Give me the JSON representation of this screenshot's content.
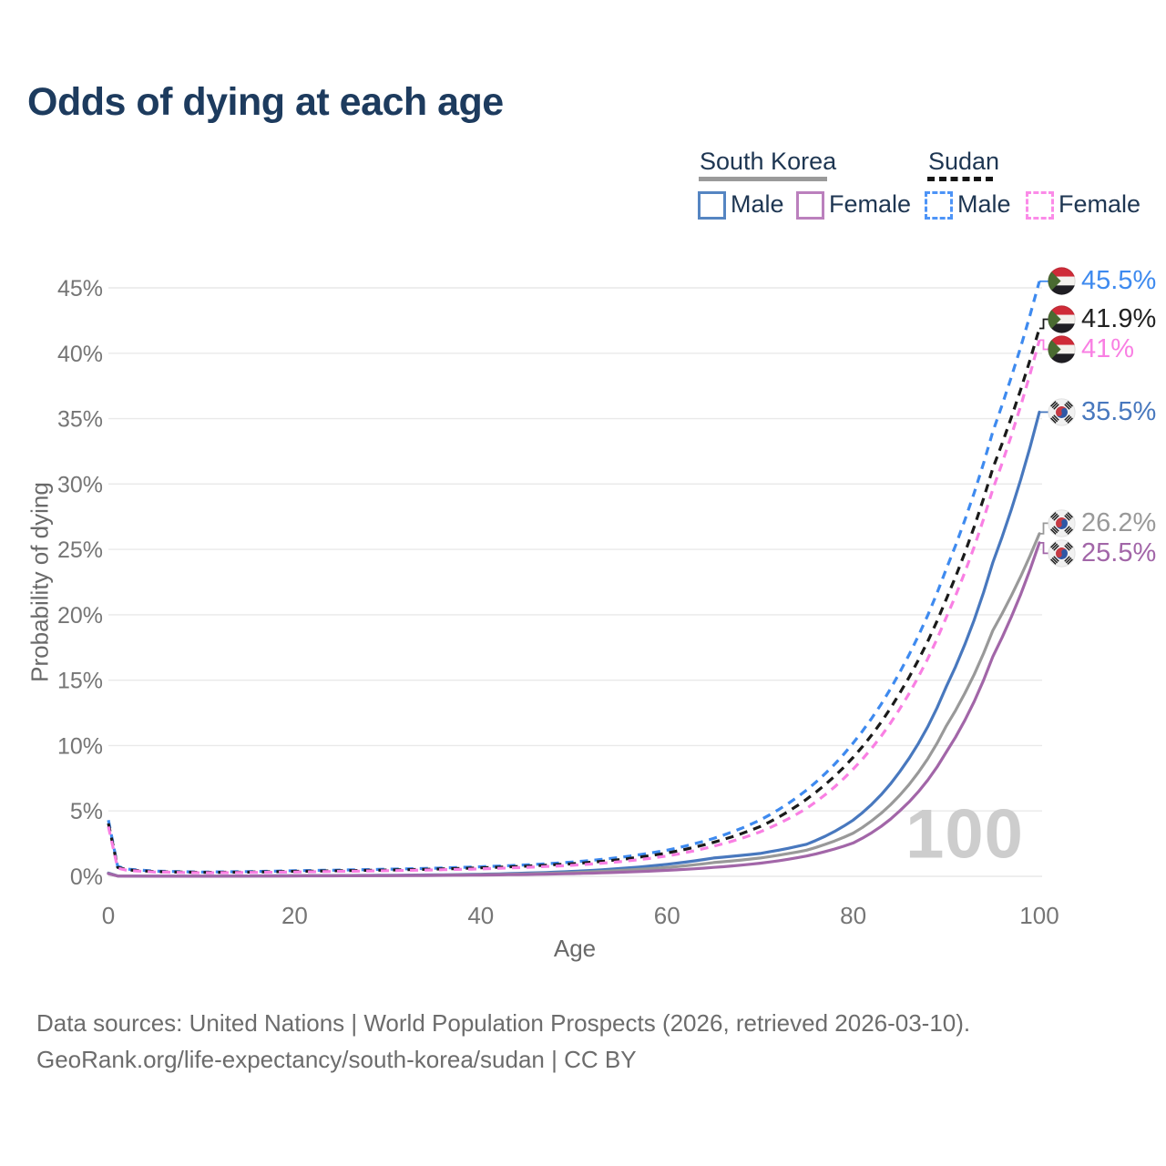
{
  "chart_data": {
    "type": "line",
    "title": "Odds of dying at each age",
    "xlabel": "Age",
    "ylabel": "Probability of dying",
    "xlim": [
      0,
      100
    ],
    "ylim": [
      0,
      45
    ],
    "grid": "horizontal",
    "age_readout": "100",
    "x_ticks": [
      {
        "v": 0,
        "label": "0"
      },
      {
        "v": 20,
        "label": "20"
      },
      {
        "v": 40,
        "label": "40"
      },
      {
        "v": 60,
        "label": "60"
      },
      {
        "v": 80,
        "label": "80"
      },
      {
        "v": 100,
        "label": "100"
      }
    ],
    "y_ticks": [
      {
        "v": 0,
        "label": "0%"
      },
      {
        "v": 5,
        "label": "5%"
      },
      {
        "v": 10,
        "label": "10%"
      },
      {
        "v": 15,
        "label": "15%"
      },
      {
        "v": 20,
        "label": "20%"
      },
      {
        "v": 25,
        "label": "25%"
      },
      {
        "v": 30,
        "label": "30%"
      },
      {
        "v": 35,
        "label": "35%"
      },
      {
        "v": 40,
        "label": "40%"
      },
      {
        "v": 45,
        "label": "45%"
      }
    ],
    "ages": [
      0,
      1,
      2,
      5,
      10,
      15,
      20,
      25,
      30,
      35,
      40,
      45,
      50,
      55,
      60,
      65,
      70,
      75,
      80,
      85,
      90,
      95,
      100
    ],
    "series": [
      {
        "id": "sudan-male",
        "name": "Sudan Male",
        "style": "dashed",
        "color": "#3e8aef",
        "label_color": "#3e8aef",
        "flag": "sudan",
        "end_label": "45.5%",
        "end_value": 45.5,
        "values": [
          4.3,
          0.75,
          0.55,
          0.4,
          0.33,
          0.36,
          0.43,
          0.48,
          0.54,
          0.62,
          0.73,
          0.88,
          1.1,
          1.45,
          2.0,
          2.9,
          4.3,
          6.6,
          10.2,
          15.6,
          23.5,
          34.0,
          45.5
        ]
      },
      {
        "id": "sudan-both",
        "name": "Sudan",
        "style": "dashed",
        "color": "#1a1a1a",
        "label_color": "#222222",
        "flag": "sudan",
        "end_label": "41.9%",
        "end_value": 41.9,
        "values": [
          4.05,
          0.68,
          0.5,
          0.36,
          0.3,
          0.32,
          0.38,
          0.43,
          0.48,
          0.55,
          0.65,
          0.78,
          0.97,
          1.28,
          1.78,
          2.6,
          3.8,
          5.9,
          9.1,
          14.0,
          21.2,
          31.2,
          41.9
        ]
      },
      {
        "id": "sudan-female",
        "name": "Sudan Female",
        "style": "dashed",
        "color": "#f97fe3",
        "label_color": "#f97fe3",
        "flag": "sudan",
        "end_label": "41%",
        "end_value": 41.0,
        "values": [
          3.8,
          0.62,
          0.46,
          0.33,
          0.27,
          0.29,
          0.33,
          0.38,
          0.43,
          0.49,
          0.57,
          0.69,
          0.85,
          1.12,
          1.55,
          2.3,
          3.4,
          5.2,
          8.2,
          12.8,
          19.8,
          29.6,
          41.0
        ]
      },
      {
        "id": "south-korea-male",
        "name": "South Korea Male",
        "style": "solid",
        "color": "#4878be",
        "label_color": "#4878be",
        "flag": "south-korea",
        "end_label": "35.5%",
        "end_value": 35.5,
        "values": [
          0.25,
          0.03,
          0.02,
          0.015,
          0.012,
          0.03,
          0.05,
          0.06,
          0.08,
          0.11,
          0.16,
          0.25,
          0.38,
          0.6,
          0.92,
          1.4,
          1.75,
          2.45,
          4.3,
          8.0,
          14.5,
          24.0,
          35.5
        ]
      },
      {
        "id": "south-korea-both",
        "name": "South Korea",
        "style": "solid",
        "color": "#999999",
        "label_color": "#999999",
        "flag": "south-korea",
        "end_label": "26.2%",
        "end_value": 26.2,
        "values": [
          0.22,
          0.025,
          0.018,
          0.012,
          0.01,
          0.02,
          0.04,
          0.05,
          0.06,
          0.09,
          0.13,
          0.19,
          0.29,
          0.45,
          0.68,
          1.05,
          1.4,
          2.0,
          3.3,
          6.2,
          11.5,
          18.8,
          26.2
        ]
      },
      {
        "id": "south-korea-female",
        "name": "South Korea Female",
        "style": "solid",
        "color": "#a266a8",
        "label_color": "#a266a8",
        "flag": "south-korea",
        "end_label": "25.5%",
        "end_value": 25.5,
        "values": [
          0.2,
          0.02,
          0.015,
          0.01,
          0.009,
          0.018,
          0.03,
          0.04,
          0.05,
          0.07,
          0.1,
          0.14,
          0.21,
          0.31,
          0.46,
          0.68,
          1.0,
          1.55,
          2.55,
          5.0,
          9.5,
          16.8,
          25.5
        ]
      }
    ],
    "flag_colors": {
      "sudan": {
        "red": "#cf2b38",
        "white": "#f4f2ee",
        "black": "#1f1e23",
        "green": "#4a6b31"
      },
      "south_korea": {
        "bg": "#f1f1f1",
        "red": "#c63b44",
        "blue": "#2e58a6",
        "trigram": "#1a1a1a"
      }
    }
  },
  "legend": {
    "groups": [
      {
        "label": "South Korea",
        "style": "solid",
        "underline_color": "#9a9a9a",
        "items": [
          {
            "label": "Male",
            "color": "#5585c2"
          },
          {
            "label": "Female",
            "color": "#bb80bd"
          }
        ]
      },
      {
        "label": "Sudan",
        "style": "dashed",
        "underline_color": "#161616",
        "items": [
          {
            "label": "Male",
            "color": "#4d94f7"
          },
          {
            "label": "Female",
            "color": "#fb8be8"
          }
        ]
      }
    ]
  },
  "footer": {
    "line1": "Data sources: United Nations | World Population Prospects (2026, retrieved 2026-03-10).",
    "line2": "GeoRank.org/life-expectancy/south-korea/sudan | CC BY"
  }
}
